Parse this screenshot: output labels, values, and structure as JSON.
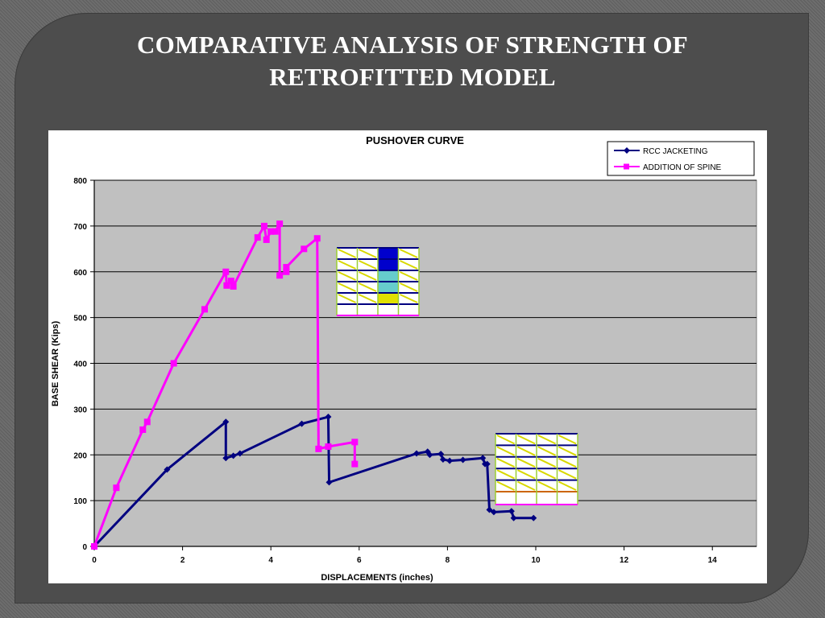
{
  "slide": {
    "title_line1": "COMPARATIVE ANALYSIS OF STRENGTH OF",
    "title_line2": "RETROFITTED MODEL"
  },
  "chart_data": {
    "type": "line",
    "title": "PUSHOVER CURVE",
    "xlabel": "DISPLACEMENTS (inches)",
    "ylabel": "BASE SHEAR (Kips)",
    "xlim": [
      0,
      15
    ],
    "ylim": [
      0,
      800
    ],
    "xticks": [
      0,
      2,
      4,
      6,
      8,
      10,
      12,
      14
    ],
    "yticks": [
      0,
      100,
      200,
      300,
      400,
      500,
      600,
      700,
      800
    ],
    "grid": "horizontal",
    "legend_position": "top-right",
    "plot_background": "#c0c0c0",
    "series": [
      {
        "name": "RCC JACKETING",
        "color": "#000080",
        "marker": "diamond",
        "x": [
          0,
          1.65,
          2.98,
          2.98,
          3.15,
          3.3,
          4.7,
          5.3,
          5.32,
          7.3,
          7.55,
          7.6,
          7.85,
          7.9,
          8.05,
          8.35,
          8.8,
          8.85,
          8.9,
          8.95,
          9.05,
          9.45,
          9.5,
          9.95
        ],
        "y": [
          0,
          168,
          272,
          193,
          198,
          203,
          268,
          283,
          140,
          203,
          207,
          200,
          202,
          190,
          187,
          189,
          193,
          180,
          180,
          80,
          75,
          77,
          62,
          62
        ]
      },
      {
        "name": "ADDITION OF SPINE",
        "color": "#ff00ff",
        "marker": "square",
        "x": [
          0,
          0.5,
          1.1,
          1.2,
          1.8,
          2.5,
          2.98,
          3.0,
          3.1,
          3.15,
          3.7,
          3.85,
          3.9,
          4.0,
          4.1,
          4.2,
          4.2,
          4.35,
          4.35,
          4.75,
          5.05,
          5.08,
          5.3,
          5.9,
          5.9
        ],
        "y": [
          0,
          128,
          255,
          272,
          400,
          518,
          600,
          570,
          580,
          568,
          675,
          700,
          670,
          688,
          688,
          705,
          592,
          600,
          610,
          650,
          673,
          213,
          218,
          228,
          180
        ]
      }
    ],
    "insets": [
      {
        "name": "building-frame-spine"
      },
      {
        "name": "building-frame-jacketing"
      }
    ]
  }
}
